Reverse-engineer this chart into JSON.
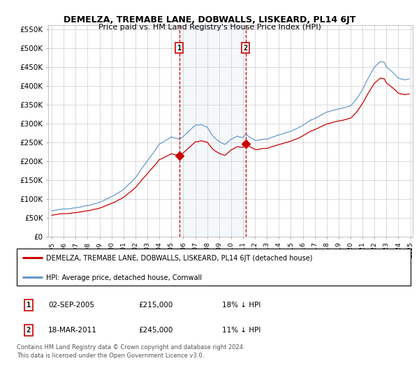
{
  "title": "DEMELZA, TREMABE LANE, DOBWALLS, LISKEARD, PL14 6JT",
  "subtitle": "Price paid vs. HM Land Registry's House Price Index (HPI)",
  "legend_line1": "DEMELZA, TREMABE LANE, DOBWALLS, LISKEARD, PL14 6JT (detached house)",
  "legend_line2": "HPI: Average price, detached house, Cornwall",
  "sale1_date": "02-SEP-2005",
  "sale1_price": 215000,
  "sale1_label": "18% ↓ HPI",
  "sale1_year": 2005.67,
  "sale2_date": "18-MAR-2011",
  "sale2_price": 245000,
  "sale2_label": "11% ↓ HPI",
  "sale2_year": 2011.21,
  "footer": "Contains HM Land Registry data © Crown copyright and database right 2024.\nThis data is licensed under the Open Government Licence v3.0.",
  "hpi_color": "#6699cc",
  "price_color": "#cc0000",
  "shade_color": "#dde8f5",
  "ylim": [
    0,
    560000
  ],
  "yticks": [
    0,
    50000,
    100000,
    150000,
    200000,
    250000,
    300000,
    350000,
    400000,
    450000,
    500000,
    550000
  ],
  "ytick_labels": [
    "£0",
    "£50K",
    "£100K",
    "£150K",
    "£200K",
    "£250K",
    "£300K",
    "£350K",
    "£400K",
    "£450K",
    "£500K",
    "£550K"
  ]
}
